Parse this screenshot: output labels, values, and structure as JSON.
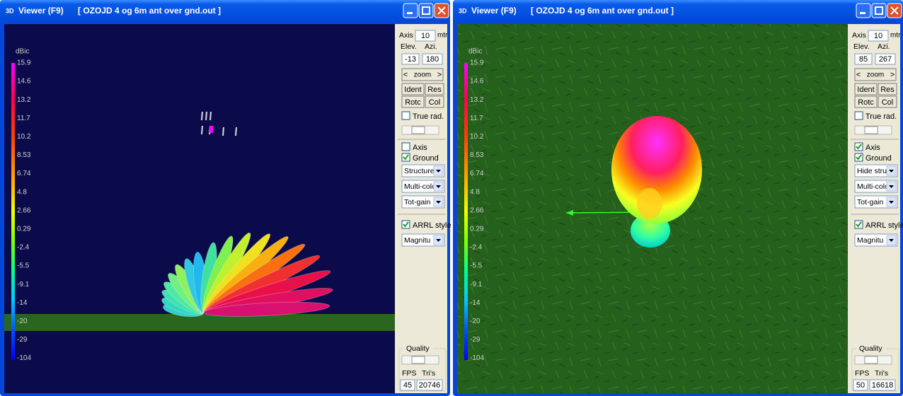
{
  "windows": [
    {
      "title_icon": "3D",
      "title": "Viewer (F9)",
      "file": "[ OZOJD 4 og 6m ant over gnd.out ]",
      "scale": {
        "unit": "dBic",
        "labels": [
          "15.9",
          "14.6",
          "13.2",
          "11.7",
          "10.2",
          "8.53",
          "6.74",
          "4.8",
          "2.66",
          "0.29",
          "-2.4",
          "-5.5",
          "-9.1",
          "-14",
          "-20",
          "-29",
          "-104"
        ]
      },
      "panel": {
        "axis_label": "Axis",
        "axis_value": "10",
        "axis_unit": "mtr",
        "elev_label": "Elev.",
        "azi_label": "Azi.",
        "elev": "-13",
        "azi": "180",
        "zoom_left": "<",
        "zoom": "zoom",
        "zoom_right": ">",
        "buttons": [
          "Ident",
          "Res",
          "Rotc",
          "Col"
        ],
        "true_rad": {
          "label": "True rad.",
          "checked": false
        },
        "axis_check": {
          "label": "Axis",
          "checked": false
        },
        "ground_check": {
          "label": "Ground",
          "checked": true
        },
        "dropdowns": [
          "Structure",
          "Multi-colo",
          "Tot-gain"
        ],
        "arrl": {
          "label": "ARRL style",
          "checked": true
        },
        "arrl_dropdown": "Magnitu",
        "quality": "Quality",
        "fps_label": "FPS",
        "tris_label": "Tri's",
        "fps": "45",
        "tris": "20746"
      }
    },
    {
      "title_icon": "3D",
      "title": "Viewer (F9)",
      "file": "[ OZOJD 4 og 6m ant over gnd.out ]",
      "scale": {
        "unit": "dBic",
        "labels": [
          "15.9",
          "14.6",
          "13.2",
          "11.7",
          "10.2",
          "8.53",
          "6.74",
          "4.8",
          "2.66",
          "0.29",
          "-2.4",
          "-5.5",
          "-9.1",
          "-14",
          "-20",
          "-29",
          "-104"
        ]
      },
      "panel": {
        "axis_label": "Axis",
        "axis_value": "10",
        "axis_unit": "mtr",
        "elev_label": "Elev.",
        "azi_label": "Azi.",
        "elev": "85",
        "azi": "267",
        "zoom_left": "<",
        "zoom": "zoom",
        "zoom_right": ">",
        "buttons": [
          "Ident",
          "Res",
          "Rotc",
          "Col"
        ],
        "true_rad": {
          "label": "True rad.",
          "checked": false
        },
        "axis_check": {
          "label": "Axis",
          "checked": true
        },
        "ground_check": {
          "label": "Ground",
          "checked": true
        },
        "dropdowns": [
          "Hide struc",
          "Multi-colo",
          "Tot-gain"
        ],
        "arrl": {
          "label": "ARRL style",
          "checked": true
        },
        "arrl_dropdown": "Magnitu",
        "quality": "Quality",
        "fps_label": "FPS",
        "tris_label": "Tri's",
        "fps": "50",
        "tris": "16618"
      }
    }
  ]
}
